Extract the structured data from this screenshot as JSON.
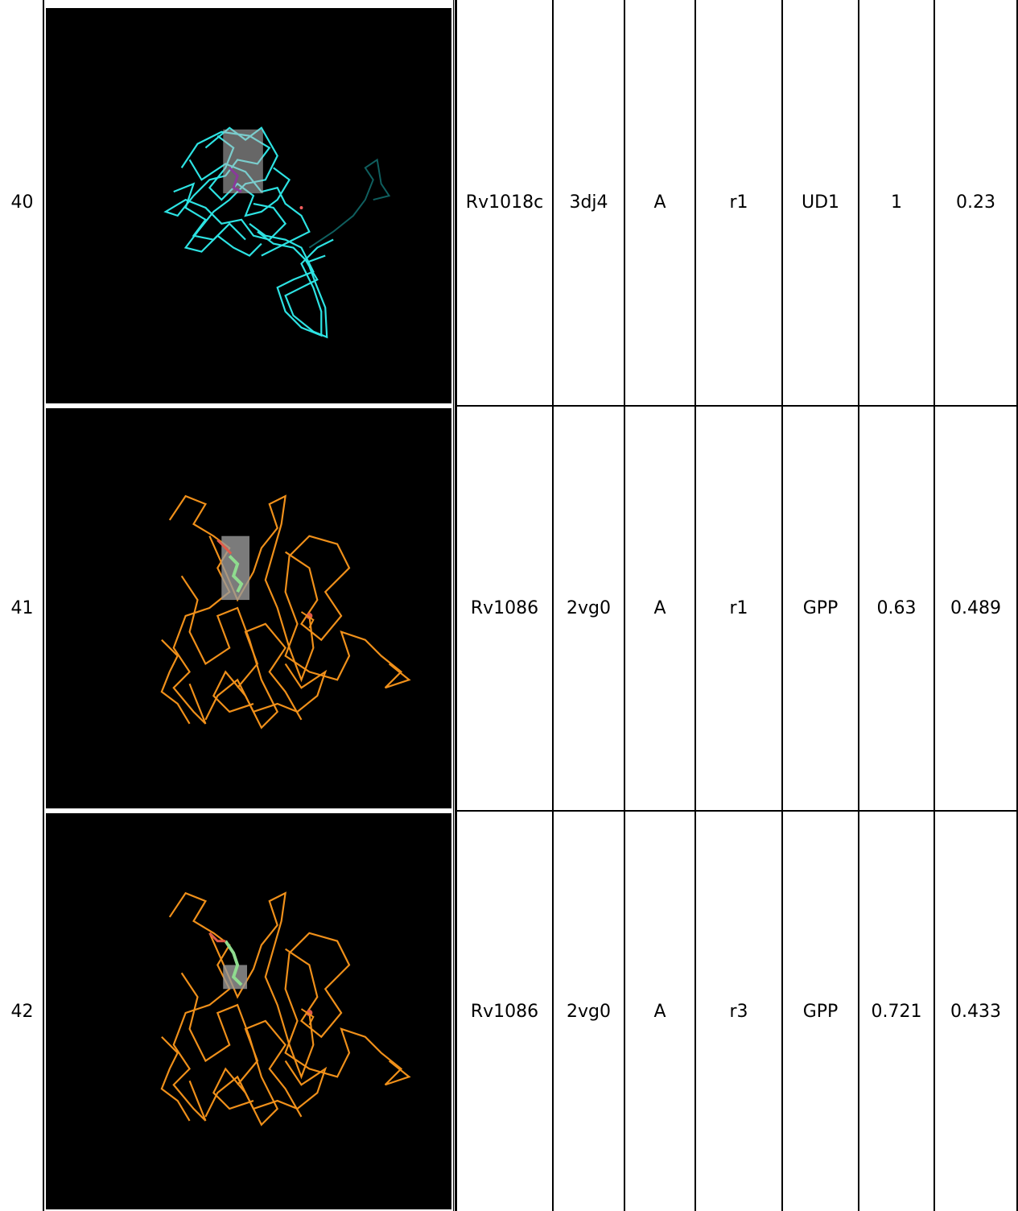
{
  "rows": [
    {
      "index": "40",
      "gene": "Rv1018c",
      "pdb": "3dj4",
      "chain": "A",
      "site": "r1",
      "ligand": "UD1",
      "score1": "1",
      "score2": "0.23",
      "structure_color": "#2de3e3"
    },
    {
      "index": "41",
      "gene": "Rv1086",
      "pdb": "2vg0",
      "chain": "A",
      "site": "r1",
      "ligand": "GPP",
      "score1": "0.63",
      "score2": "0.489",
      "structure_color": "#f0901a"
    },
    {
      "index": "42",
      "gene": "Rv1086",
      "pdb": "2vg0",
      "chain": "A",
      "site": "r3",
      "ligand": "GPP",
      "score1": "0.721",
      "score2": "0.433",
      "structure_color": "#f0901a"
    }
  ]
}
